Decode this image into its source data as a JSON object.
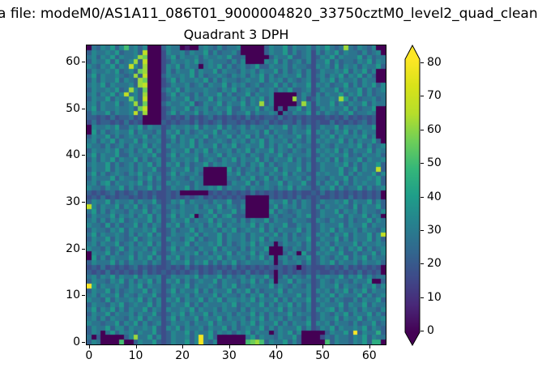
{
  "figure": {
    "suptitle": "a file: modeM0/AS1A11_086T01_9000004820_33750cztM0_level2_quad_clean",
    "title": "Quadrant 3 DPH",
    "background": "#ffffff",
    "text_color": "#000000"
  },
  "chart_data": {
    "type": "heatmap",
    "title": "Quadrant 3 DPH",
    "xlabel": "",
    "ylabel": "",
    "x_range": [
      0,
      64
    ],
    "y_range": [
      0,
      64
    ],
    "x_ticks": [
      0,
      10,
      20,
      30,
      40,
      50,
      60
    ],
    "y_ticks": [
      0,
      10,
      20,
      30,
      40,
      50,
      60
    ],
    "grid": false,
    "colormap": "viridis",
    "colormap_stops": [
      "#440154",
      "#482878",
      "#3e4a89",
      "#31688e",
      "#26828e",
      "#1f9e89",
      "#35b779",
      "#6ece58",
      "#b5de2b",
      "#d8e219",
      "#fde725"
    ],
    "colorbar": {
      "position": "right",
      "ticks": [
        0,
        10,
        20,
        30,
        40,
        50,
        60,
        70,
        80
      ],
      "vmin": 0,
      "vmax": 82,
      "extend": "both"
    },
    "matrix_encoding": {
      "format": "hex digits 0-f, one row string per detector row, top row first (y=63), leftmost char is x=0",
      "value_per_digit": 5.7,
      "rows": 64,
      "cols": 64
    },
    "matrix": [
      "0546574695646000465501005654645560000046557465564657545b54654600",
      "465565745564c000365564655746455640000046557464563646574655464560",
      "56465746556ba000357465564655657445000004655744563465746555746455",
      "4655747456b4c000346556574565554646000065746456463557464554657465",
      "654657465c64b000365746550565746456457446556465543656474656465574",
      "46556574564ab000364655746557465546564655746456463465565746574600",
      "5746556545b4c000465565746455654656465746456557463564657465746400",
      "46465574654ba000357465565746465545655746564654563465746556465500",
      "56574655564bc000346556456465574656456455746465573656455746465746",
      "465565745b64a000465746555655465745654656465744563465574655746456",
      "56465746c564b000357465464655746455746556000004653646557465746455",
      "465574655a64c0003465574655746556464657460000 b463465565b74645564",
      "5646557456b4a000465565734655746557465b46000004b63655746465574655",
      "57465565564ac000346557465646557446557465040557463465655746455700",
      "4655746556c4b000357465574655647455746556505465573646546574556500",
      "4434353445340000343435343453434343534344353434343334343534343400",
      "3534434353430000434344353434534434343453434435343433534343453400",
      "0655657446574655346556574655746456465546557465463465574655655700",
      "0746456557465546365746456557465546556474655465573656465746465500",
      "4655746456557465357465565746557465746456465557463465746556574600",
      "5646574655746556346465746455654656465746556465463656557464655740",
      "6554645646557465365565746557465745655746465746553465465565746456",
      "4655657456465746346557465746556465746557465465463656574646557465",
      "5746557446556574357465564655746556465465574655563465655745465564",
      "4646574655746456346556574565465746557464655746453656474655746556",
      "5655746456465746365746455746565546465746456556463465565746465574",
      "46557465564655743465574650000074645646557465574634655574574655c4",
      "5746456546574655357465564000006574655646557465543656557464655746",
      "4655574655465746346554655000005546574574646556463554655746556574",
      "5646746556574645365655465000004655746465574655743646574646565574",
      "6554655746455746346557465565746556465565465746553465746455746456",
      "4343453434534343343400000034343434353434343434334353434343434340",
      "3435343443434353343434345343434343000004343435343433434353434340",
      "4655746556465574346574655546557445000006557464653465565746557464",
      "c646557465746456355465564655746546000005746564653646556547465574",
      "5746465546557465346565565574655745000007465456553465574656465546",
      "4655574656465746357465704657467444000005645546573465557465574650",
      "5646465745655746346557465574655646465574655465543654655464557465",
      "6554746455746465365746556465746556574646557446563465557465574655",
      "4655465746556574346455746556465745655746465557463465746556465546",
      "574655654646574634655657465574655646556574646456365646574655746c",
      "4655746545745655365546746455746556465746556465573465574646557464",
      "5646557456465746346557465565746456574655046556463656465557465565",
      "6554645746556465357465546557465546465570005465463465746465746456",
      "0655746456465574346556574646557465574650004650743656557446455746",
      "0746465557465746365746455565746556465746056465573465465746574655",
      "4655574646556465346557465746465745655565046556463465746556465564",
      "3435343434534343343435343434343534343434343430343334343534343430",
      "4343534343435343434343453434534343534343043434343433434343534340",
      "5646574655746556346556574655746456465574046465463656557465746455",
      "4655465746465746365746456557465546574646055746553465465546557004",
      "f746556546574655346557465565465745465557465465463465574655465746",
      "4655746456557465357465574646557465746455574655563656465746574655",
      "5646557465465574346556465557465546465746465557463465746555746456",
      "6554746556574646365746557465746656574655746465573656465446465574",
      "4655465745655746346557464655565745655746465746463465557465574655",
      "5746574646557465365565746556465546465565574655463656746456465546",
      "4655746556465574346574655746556465574646455746553465465746557464",
      "5646465546574655357465574655746556465746564655463465574655746556",
      "6554557465746456346556465574655646574655746465573656465546455745",
      "4655746646556574365746556465574645655746465557463465746556574654",
      "4650574656465574346557465574656465746550465746000004655 74f465584",
      "5040000046b5574634655646e574000000574655465574000035465546574655",
      "465000090046557434655746e5460000009ab946557464000009465546574880"
    ]
  }
}
